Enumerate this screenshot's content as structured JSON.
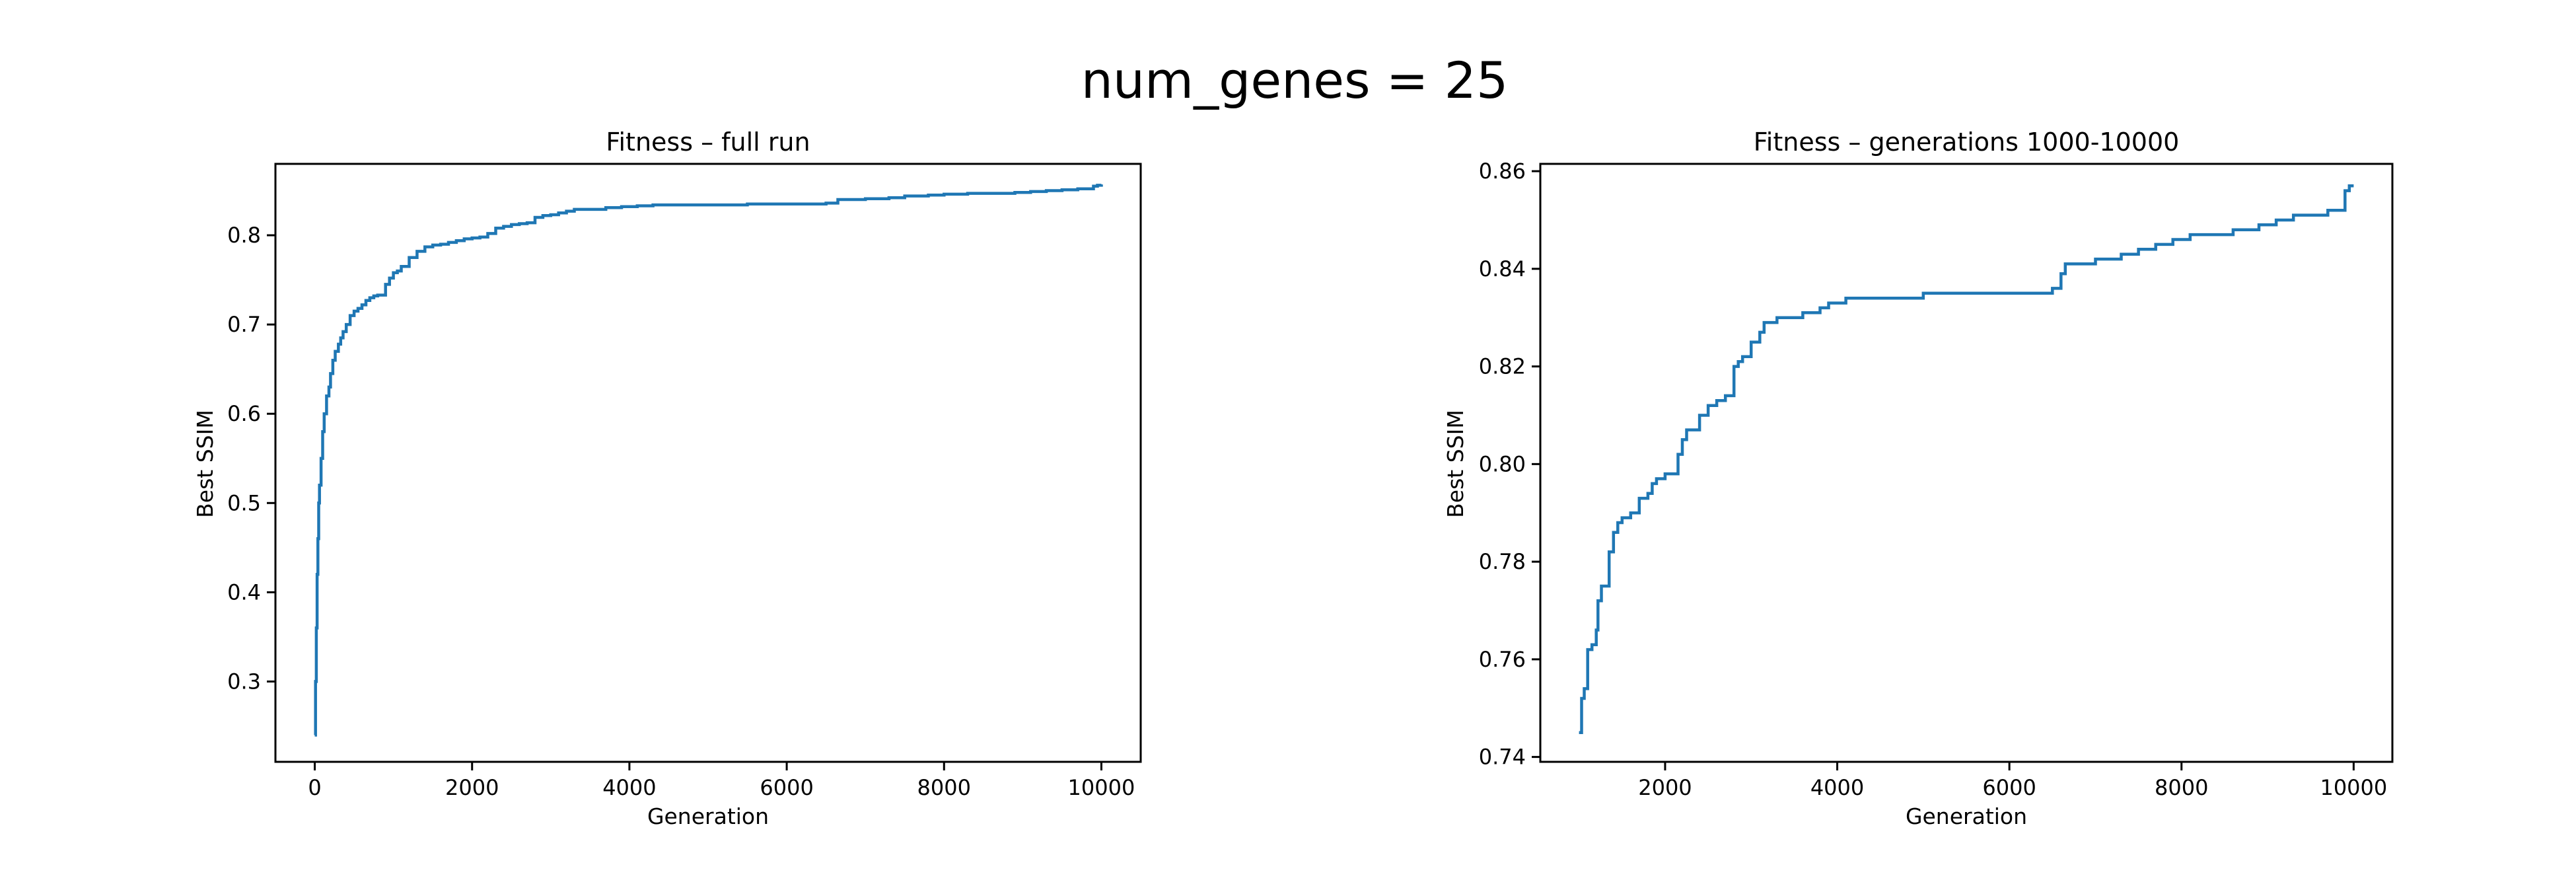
{
  "figure": {
    "suptitle": "num_genes = 25"
  },
  "chart_data": [
    {
      "type": "line",
      "title": "Fitness – full run",
      "xlabel": "Generation",
      "ylabel": "Best SSIM",
      "xlim": [
        -500,
        10500
      ],
      "ylim": [
        0.21,
        0.88
      ],
      "xticks": [
        0,
        2000,
        4000,
        6000,
        8000,
        10000
      ],
      "yticks": [
        0.3,
        0.4,
        0.5,
        0.6,
        0.7,
        0.8
      ],
      "tick_decimals": 1,
      "grid": false,
      "color": "#1f77b4",
      "series": [
        {
          "x": [
            0,
            10,
            20,
            30,
            40,
            50,
            60,
            80,
            100,
            120,
            150,
            180,
            200,
            230,
            260,
            300,
            330,
            360,
            400,
            450,
            500,
            550,
            600,
            650,
            700,
            750,
            800,
            900,
            950,
            1000,
            1050,
            1100,
            1200,
            1300,
            1400,
            1500,
            1600,
            1700,
            1800,
            1900,
            2000,
            2100,
            2200,
            2300,
            2400,
            2500,
            2600,
            2700,
            2800,
            2900,
            3000,
            3100,
            3200,
            3300,
            3500,
            3700,
            3900,
            4100,
            4300,
            4500,
            5000,
            5500,
            6000,
            6500,
            6600,
            6650,
            7000,
            7300,
            7500,
            7800,
            8000,
            8300,
            8600,
            8900,
            9100,
            9300,
            9500,
            9700,
            9850,
            9900,
            9950,
            10000
          ],
          "y": [
            0.24,
            0.3,
            0.36,
            0.42,
            0.46,
            0.5,
            0.52,
            0.55,
            0.58,
            0.6,
            0.62,
            0.63,
            0.645,
            0.66,
            0.67,
            0.678,
            0.685,
            0.692,
            0.7,
            0.71,
            0.715,
            0.718,
            0.722,
            0.727,
            0.73,
            0.732,
            0.733,
            0.745,
            0.752,
            0.758,
            0.76,
            0.765,
            0.775,
            0.782,
            0.787,
            0.789,
            0.79,
            0.792,
            0.794,
            0.796,
            0.797,
            0.798,
            0.802,
            0.808,
            0.81,
            0.812,
            0.813,
            0.814,
            0.82,
            0.822,
            0.823,
            0.825,
            0.827,
            0.829,
            0.829,
            0.831,
            0.832,
            0.833,
            0.834,
            0.834,
            0.834,
            0.835,
            0.835,
            0.836,
            0.836,
            0.84,
            0.841,
            0.842,
            0.844,
            0.845,
            0.846,
            0.847,
            0.847,
            0.848,
            0.849,
            0.85,
            0.851,
            0.852,
            0.852,
            0.855,
            0.856,
            0.857
          ]
        }
      ]
    },
    {
      "type": "line",
      "title": "Fitness – generations 1000-10000",
      "xlabel": "Generation",
      "ylabel": "Best SSIM",
      "xlim": [
        550,
        10450
      ],
      "ylim": [
        0.739,
        0.8615
      ],
      "xticks": [
        2000,
        4000,
        6000,
        8000,
        10000
      ],
      "yticks": [
        0.74,
        0.76,
        0.78,
        0.8,
        0.82,
        0.84,
        0.86
      ],
      "tick_decimals": 2,
      "grid": false,
      "color": "#1f77b4",
      "series": [
        {
          "x": [
            1000,
            1030,
            1060,
            1100,
            1150,
            1200,
            1220,
            1260,
            1300,
            1350,
            1400,
            1450,
            1500,
            1600,
            1700,
            1800,
            1850,
            1900,
            2000,
            2100,
            2150,
            2200,
            2250,
            2300,
            2400,
            2500,
            2600,
            2650,
            2700,
            2800,
            2850,
            2900,
            3000,
            3100,
            3150,
            3200,
            3300,
            3500,
            3600,
            3700,
            3800,
            3900,
            4000,
            4100,
            4200,
            4300,
            5000,
            5500,
            6000,
            6500,
            6600,
            6650,
            7000,
            7300,
            7500,
            7700,
            7900,
            8100,
            8300,
            8600,
            8900,
            9100,
            9300,
            9500,
            9700,
            9850,
            9900,
            9950,
            10000
          ],
          "y": [
            0.745,
            0.752,
            0.754,
            0.762,
            0.763,
            0.766,
            0.772,
            0.775,
            0.775,
            0.782,
            0.786,
            0.788,
            0.789,
            0.79,
            0.793,
            0.794,
            0.796,
            0.797,
            0.798,
            0.798,
            0.802,
            0.805,
            0.807,
            0.807,
            0.81,
            0.812,
            0.813,
            0.813,
            0.814,
            0.82,
            0.821,
            0.822,
            0.825,
            0.827,
            0.829,
            0.829,
            0.83,
            0.83,
            0.831,
            0.831,
            0.832,
            0.833,
            0.833,
            0.834,
            0.834,
            0.834,
            0.835,
            0.835,
            0.835,
            0.836,
            0.839,
            0.841,
            0.842,
            0.843,
            0.844,
            0.845,
            0.846,
            0.847,
            0.847,
            0.848,
            0.849,
            0.85,
            0.851,
            0.851,
            0.852,
            0.852,
            0.856,
            0.857,
            0.857
          ]
        }
      ]
    }
  ]
}
